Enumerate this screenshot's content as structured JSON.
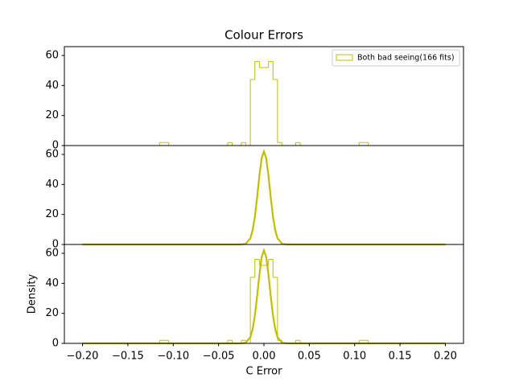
{
  "chart_data": [
    {
      "type": "histogram",
      "title": "Colour Errors",
      "xlim": [
        -0.22,
        0.22
      ],
      "ylim": [
        0,
        65.9
      ],
      "yticks": [
        0,
        20,
        40,
        60
      ],
      "legend": "upper right",
      "series": [
        {
          "type": "histogram",
          "name": "Both bad seeing(166 fits)",
          "color": "#bfbf00",
          "bins": [
            -0.115,
            -0.11,
            -0.105,
            -0.1,
            -0.095,
            -0.09,
            -0.085,
            -0.08,
            -0.075,
            -0.07,
            -0.065,
            -0.06,
            -0.055,
            -0.05,
            -0.045,
            -0.04,
            -0.035,
            -0.03,
            -0.025,
            -0.02,
            -0.015,
            -0.01,
            -0.005,
            0,
            0.005,
            0.01,
            0.015,
            0.02,
            0.025,
            0.03,
            0.035,
            0.04,
            0.045,
            0.05,
            0.055,
            0.06,
            0.065,
            0.07,
            0.075,
            0.08,
            0.085,
            0.09,
            0.095,
            0.1,
            0.105,
            0.11,
            0.115
          ],
          "values": [
            2,
            2,
            0,
            0,
            0,
            0,
            0,
            0,
            0,
            0,
            0,
            0,
            0,
            0,
            0,
            2,
            0,
            0,
            2,
            0,
            44,
            56,
            52,
            52,
            56,
            44,
            2,
            0,
            0,
            0,
            2,
            0,
            0,
            0,
            0,
            0,
            0,
            0,
            0,
            0,
            0,
            0,
            0,
            0,
            2,
            2
          ]
        }
      ]
    },
    {
      "type": "line",
      "xlim": [
        -0.22,
        0.22
      ],
      "ylim": [
        0,
        65.9
      ],
      "yticks": [
        0,
        20,
        40,
        60
      ],
      "series": [
        {
          "type": "line",
          "color": "#bfbf00",
          "x": [
            -0.2,
            -0.03,
            -0.025,
            -0.02,
            -0.015,
            -0.0125,
            -0.01,
            -0.0075,
            -0.005,
            -0.0025,
            0,
            0.0025,
            0.005,
            0.0075,
            0.01,
            0.0125,
            0.015,
            0.02,
            0.025,
            0.03,
            0.2
          ],
          "values": [
            0,
            0,
            0.03,
            0.49,
            4.1,
            9.4,
            18.5,
            31.4,
            45.8,
            57.5,
            62,
            57.5,
            45.8,
            31.4,
            18.5,
            9.4,
            4.1,
            0.49,
            0.03,
            0,
            0
          ]
        }
      ]
    },
    {
      "type": "histogram",
      "xlim": [
        -0.22,
        0.22
      ],
      "ylim": [
        0,
        65.9
      ],
      "yticks": [
        0,
        20,
        40,
        60
      ],
      "xlabel": "C Error",
      "ylabel": "Density",
      "xticks": [
        {
          "value": -0.2,
          "label": "−0.20"
        },
        {
          "value": -0.15,
          "label": "−0.15"
        },
        {
          "value": -0.1,
          "label": "−0.10"
        },
        {
          "value": -0.05,
          "label": "−0.05"
        },
        {
          "value": 0,
          "label": "0.00"
        },
        {
          "value": 0.05,
          "label": "0.05"
        },
        {
          "value": 0.1,
          "label": "0.10"
        },
        {
          "value": 0.15,
          "label": "0.15"
        },
        {
          "value": 0.2,
          "label": "0.20"
        }
      ],
      "series": [
        {
          "type": "histogram",
          "color": "#bfbf00",
          "bins": [
            -0.115,
            -0.11,
            -0.105,
            -0.1,
            -0.095,
            -0.09,
            -0.085,
            -0.08,
            -0.075,
            -0.07,
            -0.065,
            -0.06,
            -0.055,
            -0.05,
            -0.045,
            -0.04,
            -0.035,
            -0.03,
            -0.025,
            -0.02,
            -0.015,
            -0.01,
            -0.005,
            0,
            0.005,
            0.01,
            0.015,
            0.02,
            0.025,
            0.03,
            0.035,
            0.04,
            0.045,
            0.05,
            0.055,
            0.06,
            0.065,
            0.07,
            0.075,
            0.08,
            0.085,
            0.09,
            0.095,
            0.1,
            0.105,
            0.11,
            0.115
          ],
          "values": [
            2,
            2,
            0,
            0,
            0,
            0,
            0,
            0,
            0,
            0,
            0,
            0,
            0,
            0,
            0,
            2,
            0,
            0,
            2,
            0,
            44,
            56,
            52,
            52,
            56,
            44,
            2,
            0,
            0,
            0,
            2,
            0,
            0,
            0,
            0,
            0,
            0,
            0,
            0,
            0,
            0,
            0,
            0,
            0,
            2,
            2
          ]
        },
        {
          "type": "line",
          "color": "#bfbf00",
          "x": [
            -0.2,
            -0.03,
            -0.025,
            -0.02,
            -0.015,
            -0.0125,
            -0.01,
            -0.0075,
            -0.005,
            -0.0025,
            0,
            0.0025,
            0.005,
            0.0075,
            0.01,
            0.0125,
            0.015,
            0.02,
            0.025,
            0.03,
            0.2
          ],
          "values": [
            0,
            0,
            0.03,
            0.49,
            4.1,
            9.4,
            18.5,
            31.4,
            45.8,
            57.5,
            62,
            57.5,
            45.8,
            31.4,
            18.5,
            9.4,
            4.1,
            0.49,
            0.03,
            0,
            0
          ]
        }
      ]
    }
  ]
}
